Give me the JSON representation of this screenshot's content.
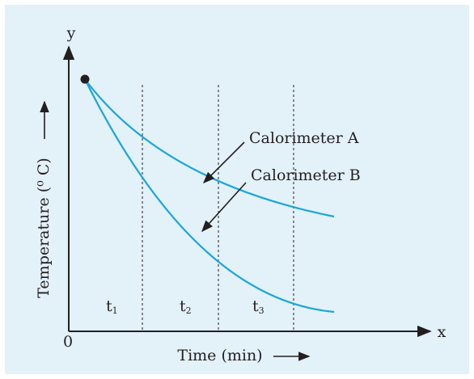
{
  "axes": {
    "y_label": "y",
    "x_label": "x",
    "origin": "0",
    "vertical_title": "Temperature (⁰ C)",
    "horizontal_title": "Time (min)"
  },
  "curves": [
    {
      "label": "Calorimeter A"
    },
    {
      "label": "Calorimeter B"
    }
  ],
  "intervals": [
    {
      "base": "t",
      "sub": "1"
    },
    {
      "base": "t",
      "sub": "2"
    },
    {
      "base": "t",
      "sub": "3"
    }
  ]
}
